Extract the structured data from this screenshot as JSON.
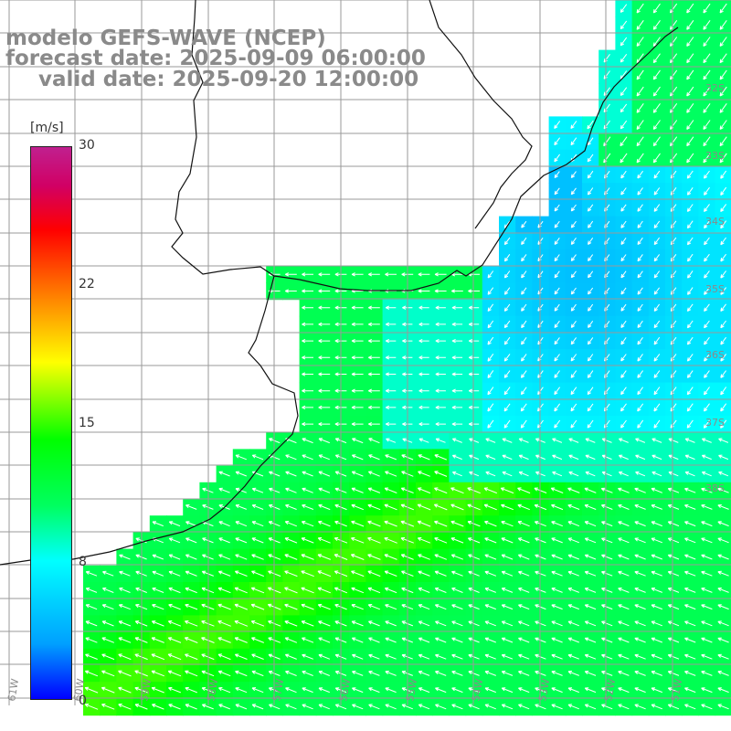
{
  "header": {
    "line1": "modelo GEFS-WAVE (NCEP)",
    "line2": "forecast date: 2025-09-09 06:00:00",
    "line3": "valid date: 2025-09-20 12:00:00"
  },
  "colorbar": {
    "unit": "[m/s]",
    "ticks": [
      "30",
      "22",
      "15",
      "8",
      "0"
    ],
    "range": [
      0,
      30
    ],
    "colors": [
      "#0000ff",
      "#00a0ff",
      "#00ffff",
      "#00ff00",
      "#ffff00",
      "#ff8000",
      "#ff0000",
      "#c0208f"
    ]
  },
  "lat_labels": [
    "32S",
    "33S",
    "34S",
    "35S",
    "36S",
    "37S",
    "38S"
  ],
  "lon_labels": [
    "61W",
    "60W",
    "59W",
    "58W",
    "57W",
    "56W",
    "55W",
    "54W",
    "53W",
    "52W",
    "51W"
  ],
  "field": {
    "variable": "wind speed",
    "unit": "m/s",
    "land_color": "#ffffff",
    "grid_color": "#9a9a9a"
  }
}
